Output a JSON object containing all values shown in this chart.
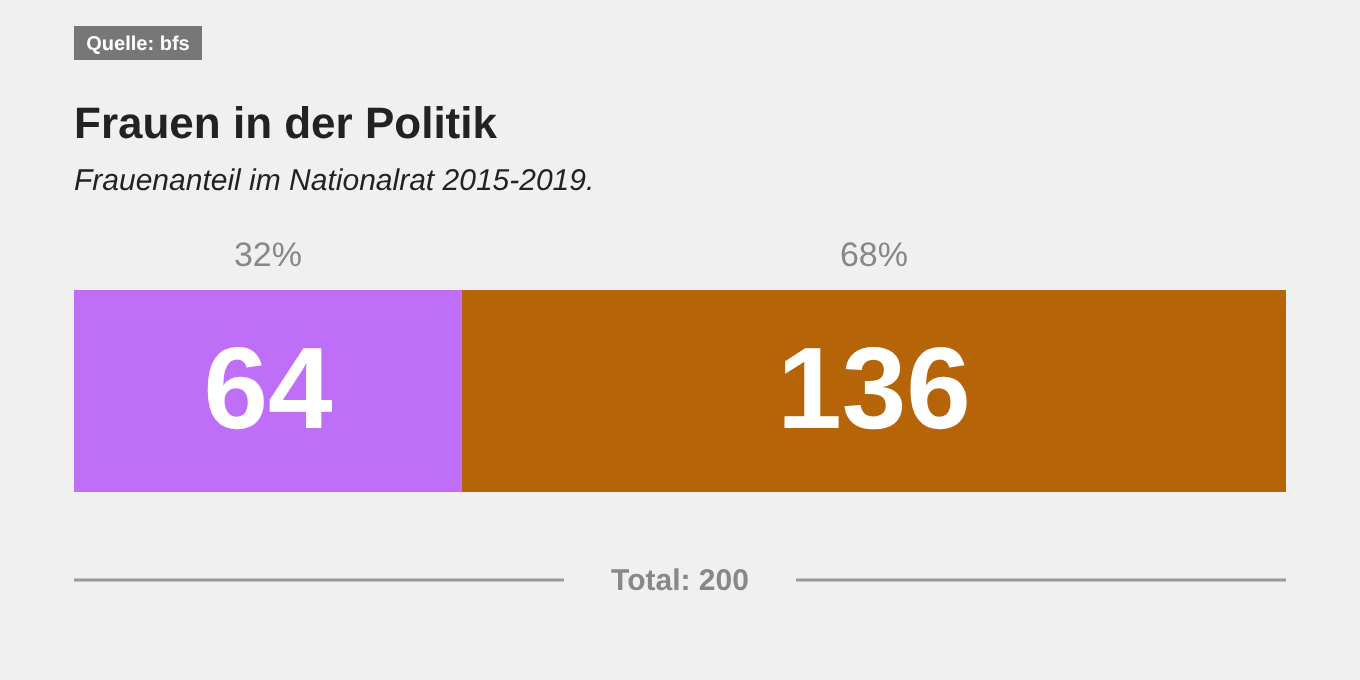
{
  "chart_data": {
    "type": "bar",
    "orientation": "horizontal",
    "stacked": true,
    "data_labels": true,
    "title": "Frauen in der Politik",
    "subtitle": "Frauenanteil im Nationalrat 2015-2019.",
    "categories": [
      null
    ],
    "series": [
      {
        "color": "#bf6ff7",
        "values": [
          64
        ]
      },
      {
        "color": "#b56407",
        "values": [
          136
        ]
      }
    ],
    "totals": [
      "Total: 200"
    ],
    "annotations": [
      "Quelle: bfs",
      "32%",
      "68%"
    ]
  }
}
